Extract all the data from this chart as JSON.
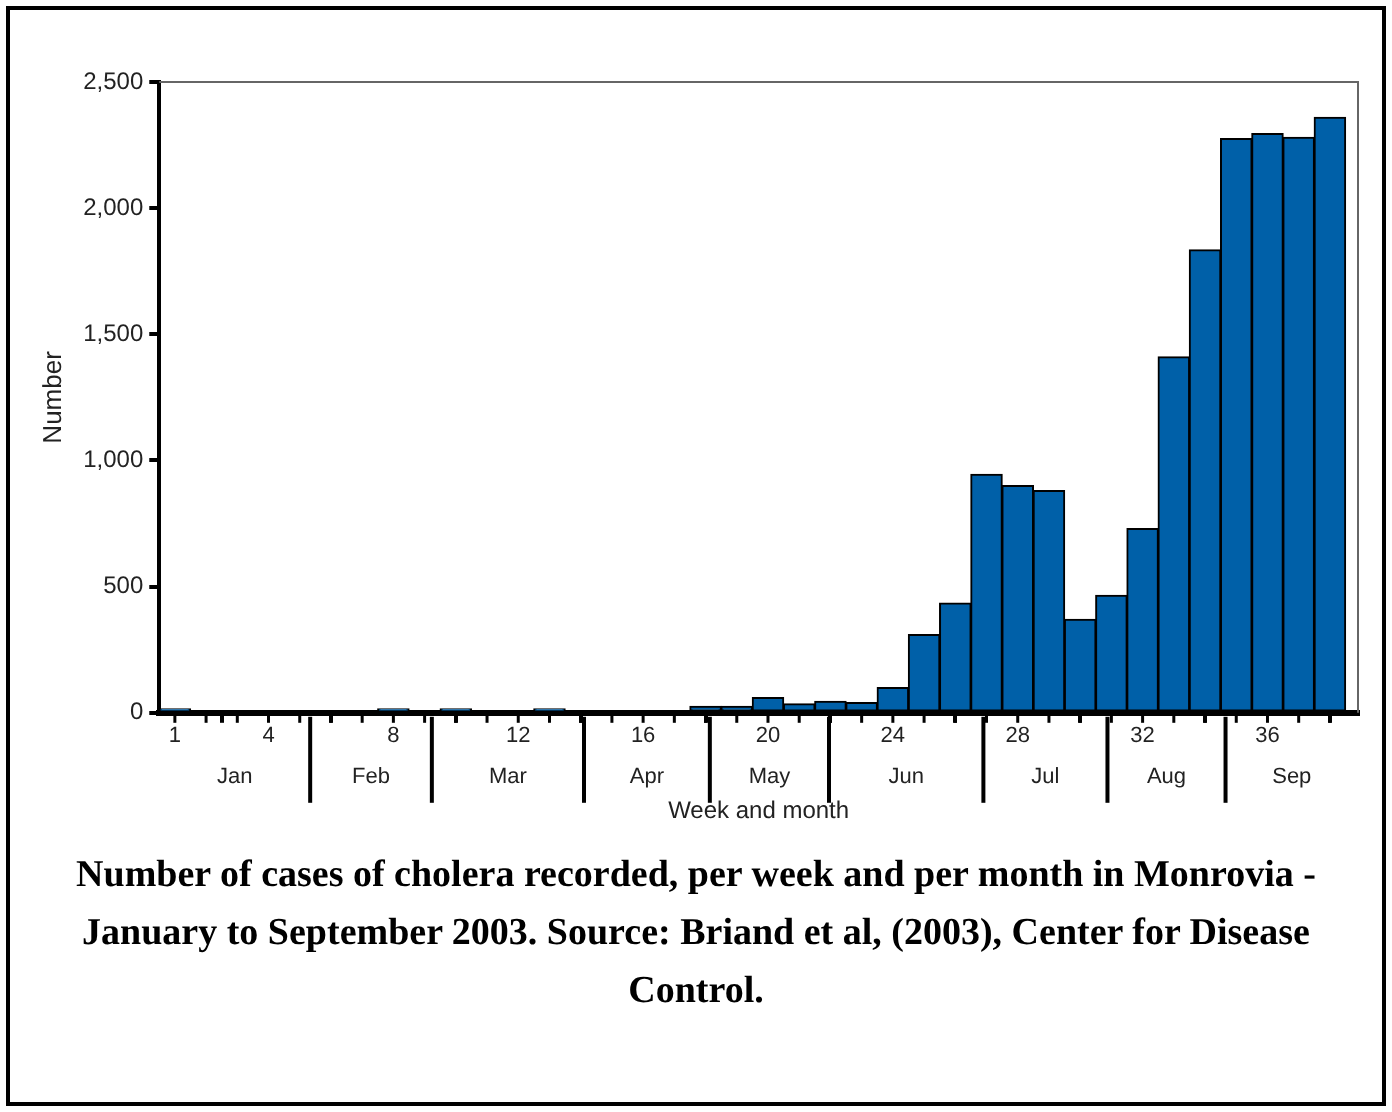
{
  "chart_data": {
    "type": "bar",
    "title": "Number of cases of cholera recorded, per week and per month in Monrovia - January to September 2003.  Source: Briand et al, (2003), Center for Disease Control.",
    "xlabel": "Week and month",
    "ylabel": "Number",
    "x": [
      1,
      2,
      3,
      4,
      5,
      6,
      7,
      8,
      9,
      10,
      11,
      12,
      13,
      14,
      15,
      16,
      17,
      18,
      19,
      20,
      21,
      22,
      23,
      24,
      25,
      26,
      27,
      28,
      29,
      30,
      31,
      32,
      33,
      34,
      35,
      36,
      37,
      38
    ],
    "values": [
      15,
      0,
      0,
      0,
      0,
      0,
      0,
      15,
      0,
      15,
      0,
      0,
      15,
      0,
      0,
      0,
      0,
      25,
      25,
      60,
      35,
      45,
      40,
      100,
      310,
      435,
      945,
      900,
      880,
      370,
      465,
      730,
      1410,
      1835,
      2275,
      2295,
      2280,
      2360
    ],
    "color": "#0060a8",
    "xlim": [
      0.5,
      38.9
    ],
    "xticks": [
      1,
      4,
      8,
      12,
      16,
      20,
      24,
      28,
      32,
      36
    ],
    "ylim": [
      0,
      2500
    ],
    "yticks": [
      0,
      500,
      {
        "value": 1000,
        "label": "1,000"
      },
      {
        "value": 1500,
        "label": "1,500"
      },
      {
        "value": 2000,
        "label": "2,000"
      },
      {
        "value": 2500,
        "label": "2,500"
      }
    ],
    "annotations": [
      "Jan",
      "Feb",
      "Mar",
      "Apr",
      "May",
      "Jun",
      "Jul",
      "Aug",
      "Sep"
    ],
    "grid": false,
    "legend": false
  }
}
